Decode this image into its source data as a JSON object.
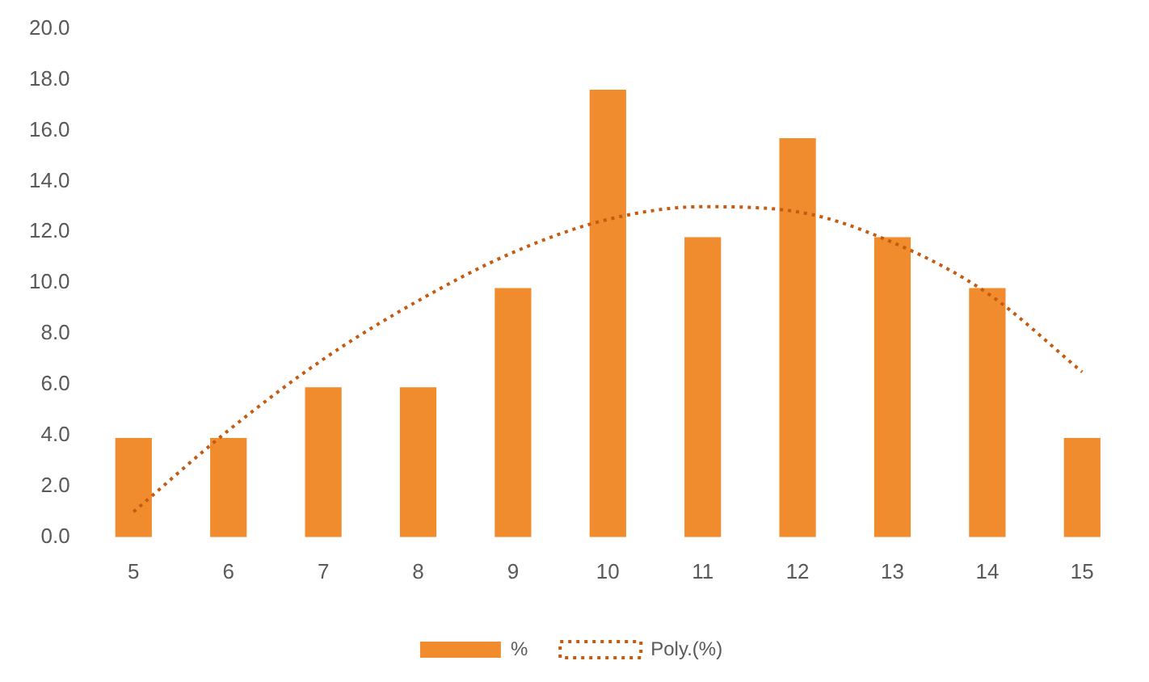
{
  "chart_data": {
    "type": "bar",
    "categories": [
      "5",
      "6",
      "7",
      "8",
      "9",
      "10",
      "11",
      "12",
      "13",
      "14",
      "15"
    ],
    "series": [
      {
        "name": "%",
        "color": "#f08c2e",
        "values": [
          3.9,
          3.9,
          5.9,
          5.9,
          9.8,
          17.6,
          11.8,
          15.7,
          11.8,
          9.8,
          3.9
        ]
      },
      {
        "name": "Poly.(%)",
        "type": "line",
        "color": "#c55a11",
        "line_style": "dotted",
        "marker": "none",
        "values": [
          1.0,
          4.2,
          7.0,
          9.3,
          11.2,
          12.5,
          13.0,
          12.8,
          11.6,
          9.6,
          6.5
        ]
      }
    ],
    "ylim": [
      0,
      20
    ],
    "yticks": [
      {
        "value": 0,
        "label": "0.0"
      },
      {
        "value": 2,
        "label": "2.0"
      },
      {
        "value": 4,
        "label": "4.0"
      },
      {
        "value": 6,
        "label": "6.0"
      },
      {
        "value": 8,
        "label": "8.0"
      },
      {
        "value": 10,
        "label": "10.0"
      },
      {
        "value": 12,
        "label": "12.0"
      },
      {
        "value": 14,
        "label": "14.0"
      },
      {
        "value": 16,
        "label": "16.0"
      },
      {
        "value": 18,
        "label": "18.0"
      },
      {
        "value": 20,
        "label": "20.0"
      }
    ],
    "grid": false,
    "legend": "bottom"
  }
}
